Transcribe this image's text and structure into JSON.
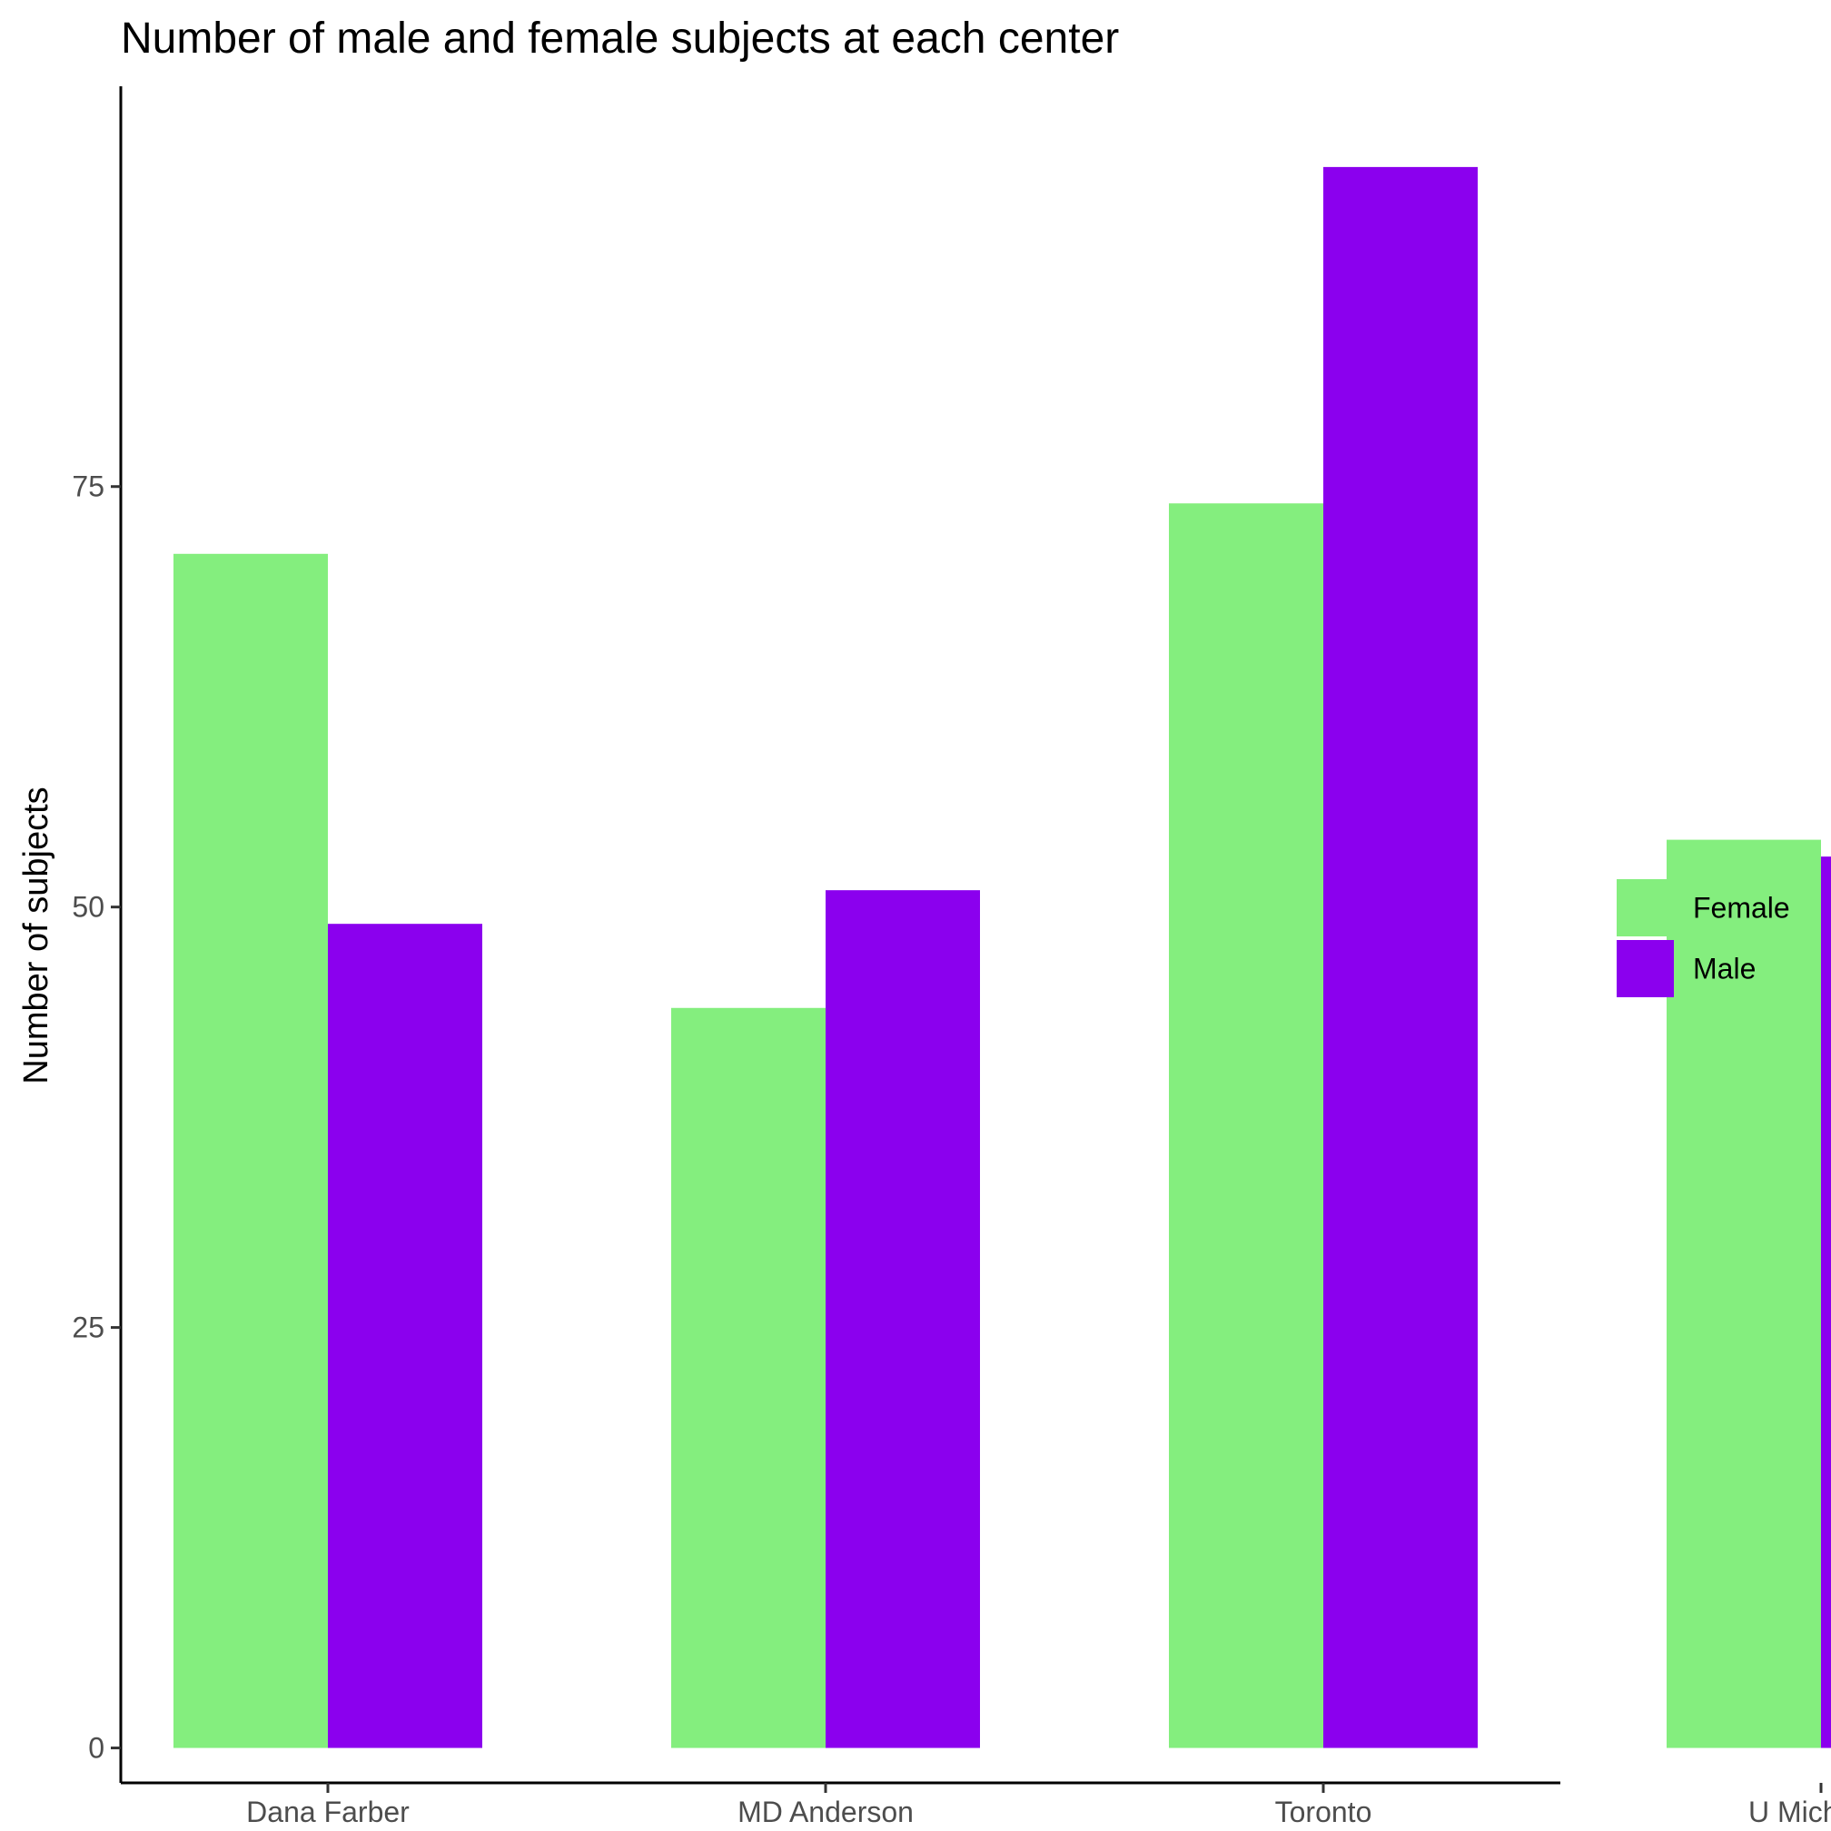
{
  "chart_data": {
    "type": "bar",
    "title": "Number of male and female subjects at each center",
    "xlabel": "",
    "ylabel": "Number of subjects",
    "categories": [
      "Dana Farber",
      "MD Anderson",
      "Toronto",
      "U Michigan"
    ],
    "series": [
      {
        "name": "Female",
        "color": "#84EE7E",
        "values": [
          71,
          44,
          74,
          54
        ]
      },
      {
        "name": "Male",
        "color": "#8B00EE",
        "values": [
          49,
          51,
          94,
          53
        ]
      }
    ],
    "yticks": [
      0,
      25,
      50,
      75
    ],
    "ylim": [
      -2.4,
      98.8
    ],
    "grid": false,
    "legend_position": "right"
  }
}
